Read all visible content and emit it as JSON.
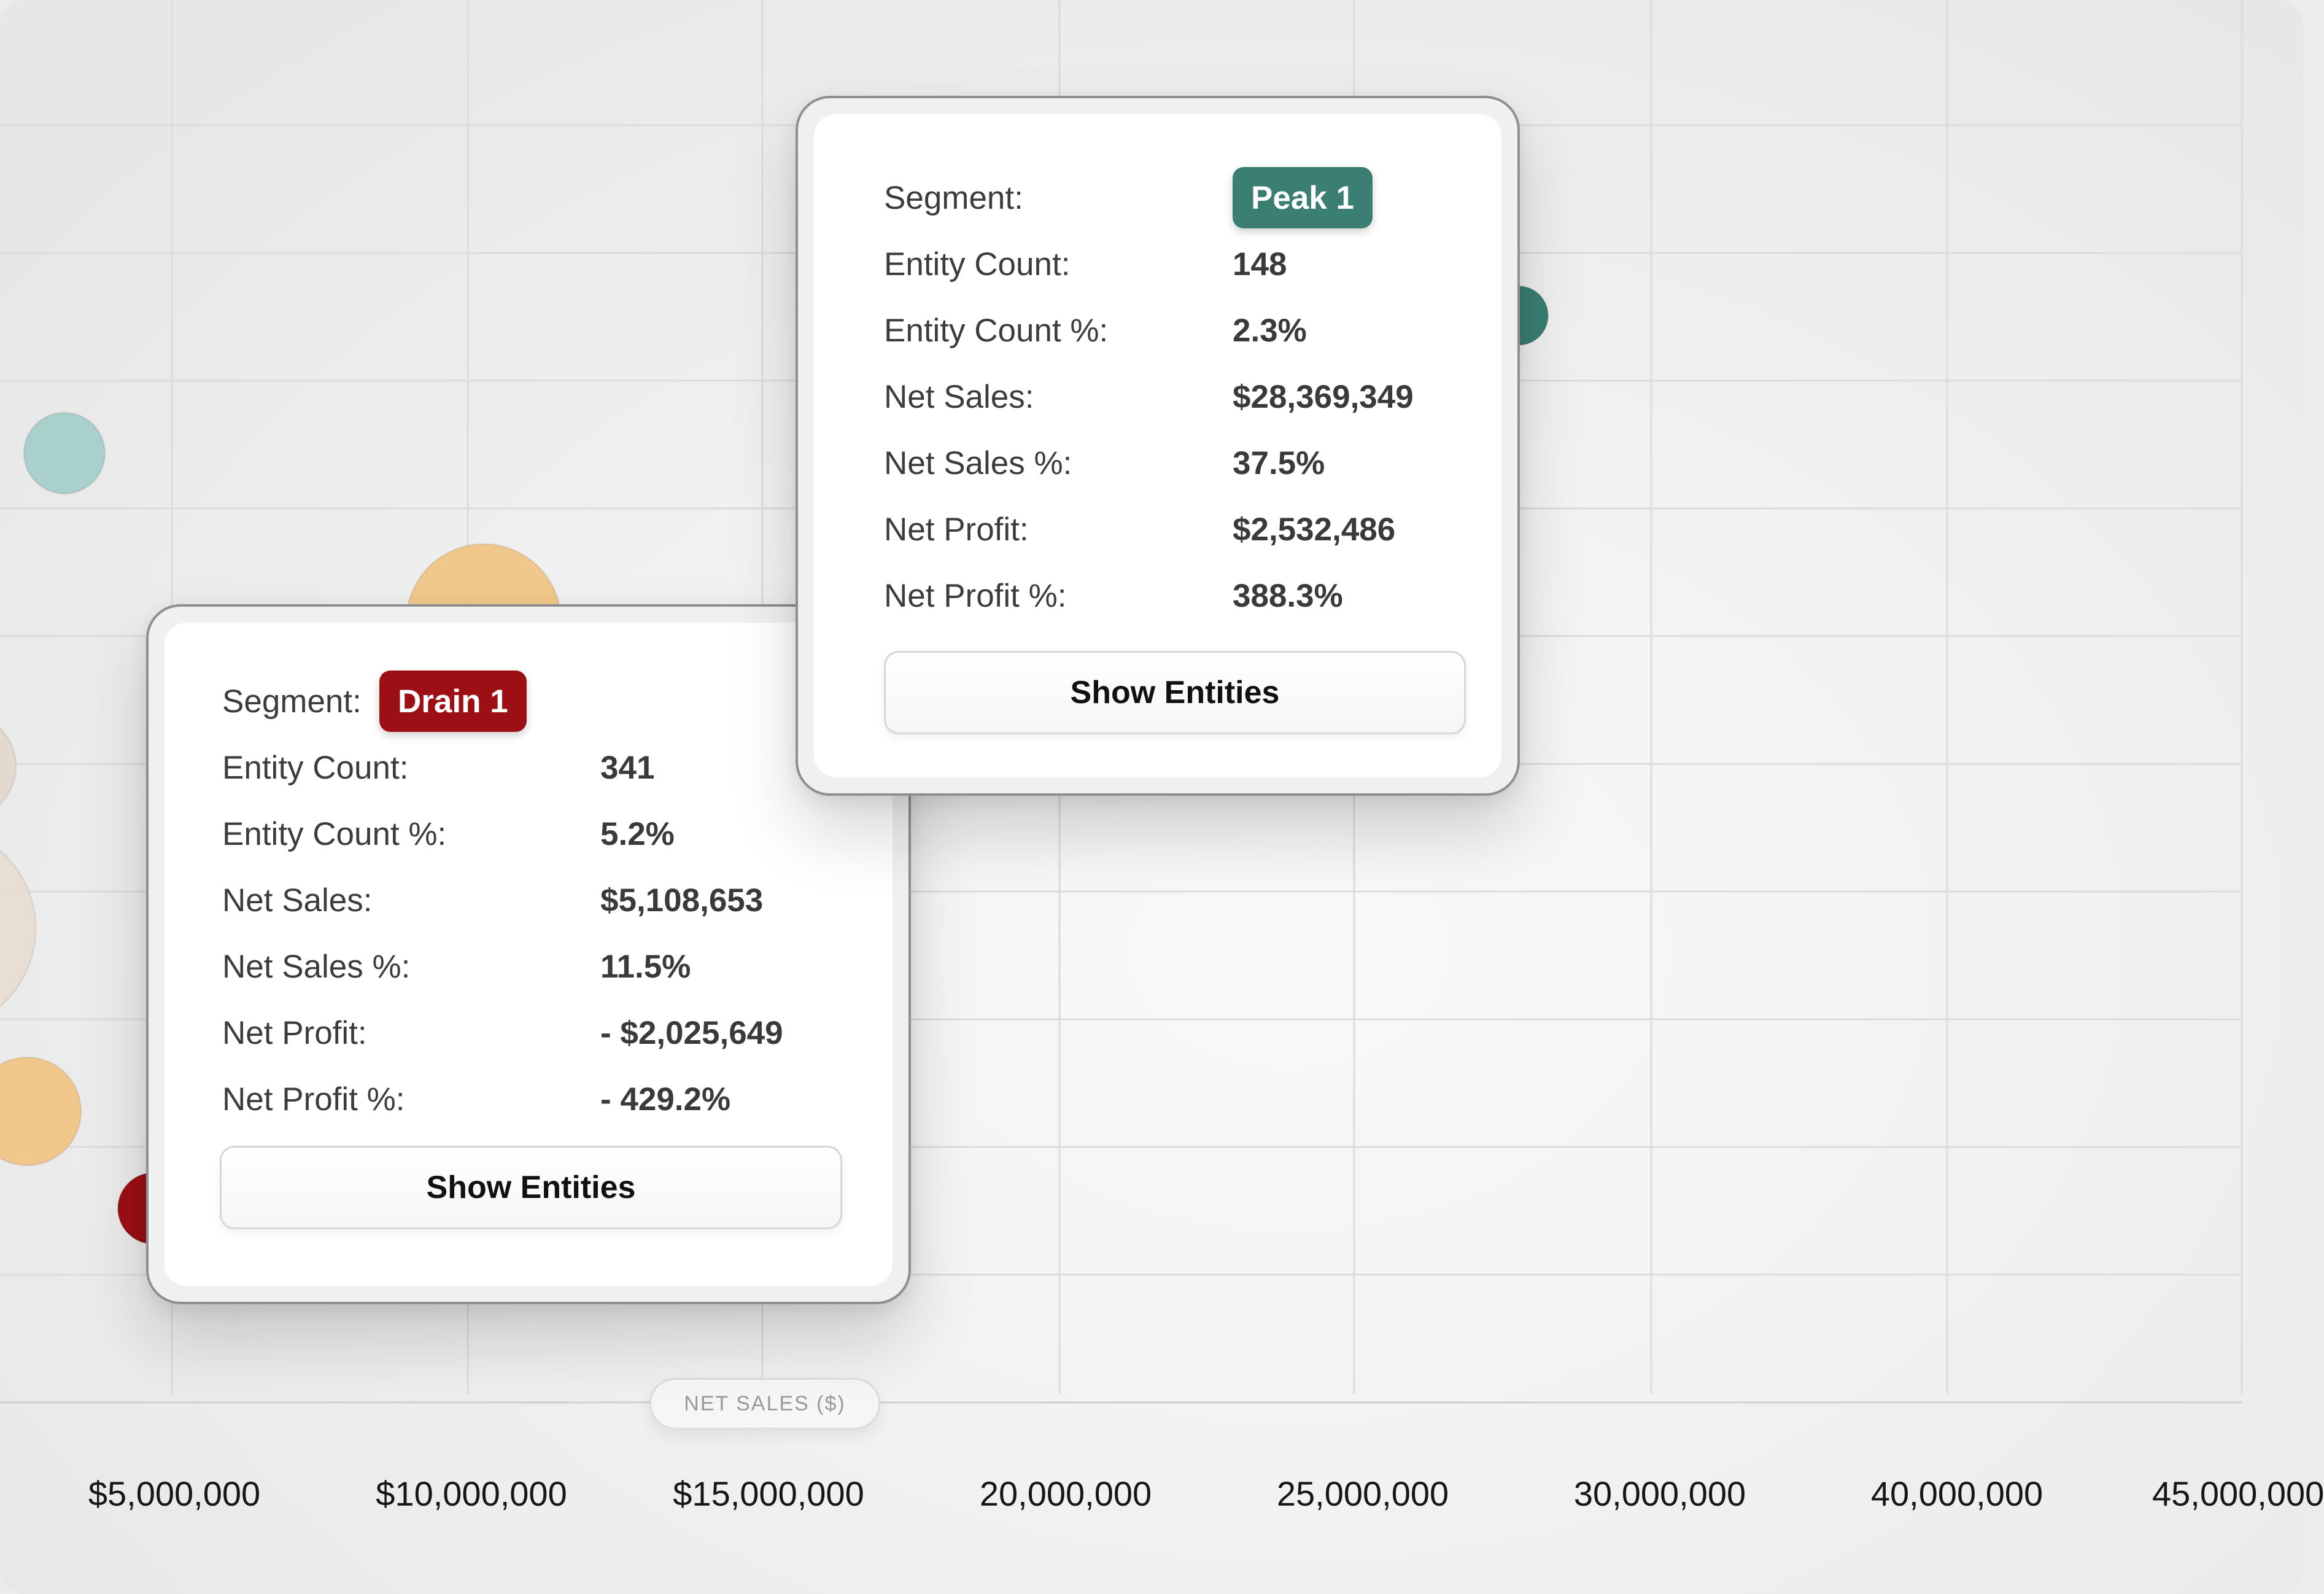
{
  "chart_data": {
    "type": "scatter",
    "xlabel": "NET SALES ($)",
    "x_tick_labels": [
      "$5,000,000",
      "$10,000,000",
      "$15,000,000",
      "20,000,000",
      "25,000,000",
      "30,000,000",
      "40,000,000",
      "45,000,000"
    ],
    "grid": true,
    "bubbles_partially_visible": [
      {
        "segment": "Peak 1",
        "color": "#3a7f72"
      },
      {
        "segment": "Drain 1",
        "color": "#9c0f14"
      },
      {
        "color": "#a7cfca"
      },
      {
        "color": "#f2c686"
      },
      {
        "color": "#f2c686"
      },
      {
        "color": "#e3d8cc"
      },
      {
        "color": "#e9ddd2"
      }
    ]
  },
  "tooltips": {
    "peak": {
      "badge": "Peak 1",
      "badge_color": "#3a7f72",
      "rows": [
        {
          "label": "Segment:",
          "value": ""
        },
        {
          "label": "Entity Count:",
          "value": "148"
        },
        {
          "label": "Entity Count %:",
          "value": "2.3%"
        },
        {
          "label": "Net Sales:",
          "value": "$28,369,349"
        },
        {
          "label": "Net Sales %:",
          "value": "37.5%"
        },
        {
          "label": "Net Profit:",
          "value": "$2,532,486"
        },
        {
          "label": "Net Profit %:",
          "value": "388.3%"
        }
      ],
      "button": "Show Entities"
    },
    "drain": {
      "badge": "Drain 1",
      "badge_color": "#9c0f14",
      "rows": [
        {
          "label": "Segment:",
          "value": ""
        },
        {
          "label": "Entity Count:",
          "value": "341"
        },
        {
          "label": "Entity Count %:",
          "value": "5.2%"
        },
        {
          "label": "Net Sales:",
          "value": "$5,108,653"
        },
        {
          "label": "Net Sales %:",
          "value": "11.5%"
        },
        {
          "label": "Net Profit:",
          "value": "- $2,025,649"
        },
        {
          "label": "Net Profit %:",
          "value": "- 429.2%"
        }
      ],
      "button": "Show Entities"
    }
  }
}
